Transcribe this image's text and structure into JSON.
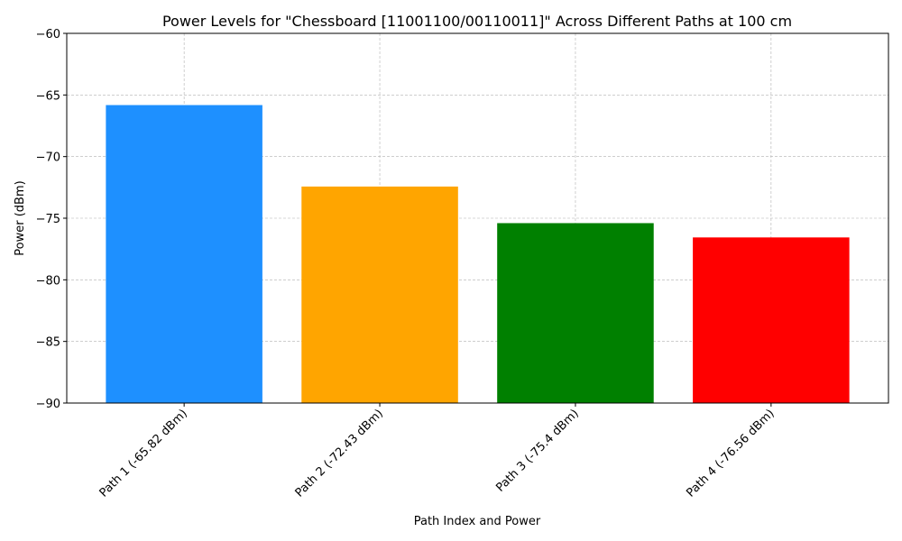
{
  "chart_data": {
    "type": "bar",
    "title": "Power Levels for \"Chessboard [11001100/00110011]\" Across Different Paths at 100 cm",
    "xlabel": "Path Index and Power",
    "ylabel": "Power (dBm)",
    "categories": [
      "Path 1 (-65.82 dBm)",
      "Path 2 (-72.43 dBm)",
      "Path 3 (-75.4 dBm)",
      "Path 4 (-76.56 dBm)"
    ],
    "values": [
      -65.82,
      -72.43,
      -75.4,
      -76.56
    ],
    "colors": [
      "#1e90ff",
      "#ffa500",
      "#008000",
      "#ff0000"
    ],
    "ylim": [
      -90,
      -60
    ],
    "yticks": [
      -90,
      -85,
      -80,
      -75,
      -70,
      -65,
      -60
    ],
    "ytick_labels": [
      "−90",
      "−85",
      "−80",
      "−75",
      "−70",
      "−65",
      "−60"
    ],
    "grid": true,
    "x_tick_rotation": 45
  }
}
